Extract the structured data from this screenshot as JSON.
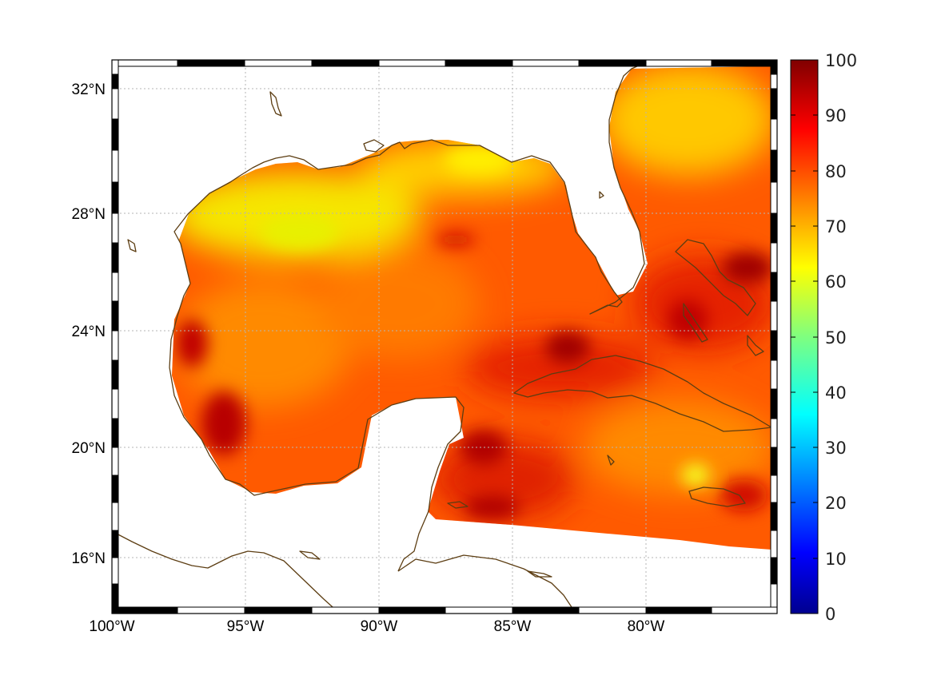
{
  "map": {
    "projection": "equirectangular",
    "lon_range": [
      -100,
      -75
    ],
    "lat_range": [
      14.2,
      33
    ],
    "longitude_ticks": [
      {
        "value": -100,
        "label": "100°W"
      },
      {
        "value": -95,
        "label": "95°W"
      },
      {
        "value": -90,
        "label": "90°W"
      },
      {
        "value": -85,
        "label": "85°W"
      },
      {
        "value": -80,
        "label": "80°W"
      }
    ],
    "latitude_ticks": [
      {
        "value": 32,
        "label": "32°N"
      },
      {
        "value": 28,
        "label": "28°N"
      },
      {
        "value": 24,
        "label": "24°N"
      },
      {
        "value": 20,
        "label": "20°N"
      },
      {
        "value": 16,
        "label": "16°N"
      }
    ],
    "grid": true,
    "frame_style": "alternating black and white bars",
    "coastline_color": "#5c3d12",
    "field_description_values": "Gridded field over Gulf of Mexico, Caribbean and western Atlantic; mostly 70–95, northern Gulf shelf ~60–68",
    "field_hotspots": [
      {
        "lon": -83.1,
        "lat": 23.4,
        "value": 95
      },
      {
        "lon": -85.5,
        "lat": 20.0,
        "value": 94
      },
      {
        "lon": -96.0,
        "lat": 21.0,
        "value": 93
      },
      {
        "lon": -76.4,
        "lat": 26.0,
        "value": 94
      },
      {
        "lon": -78.0,
        "lat": 19.3,
        "value": 63
      },
      {
        "lon": -93.0,
        "lat": 27.3,
        "value": 60
      }
    ]
  },
  "colorbar": {
    "colormap": "jet",
    "min": 0,
    "max": 100,
    "tick_labels": [
      "100",
      "90",
      "80",
      "70",
      "60",
      "50",
      "40",
      "30",
      "20",
      "10",
      "0"
    ]
  },
  "colors": {
    "frame_black": "#000000",
    "land_background": "#ffffff",
    "grid": "#b5b5b5"
  }
}
